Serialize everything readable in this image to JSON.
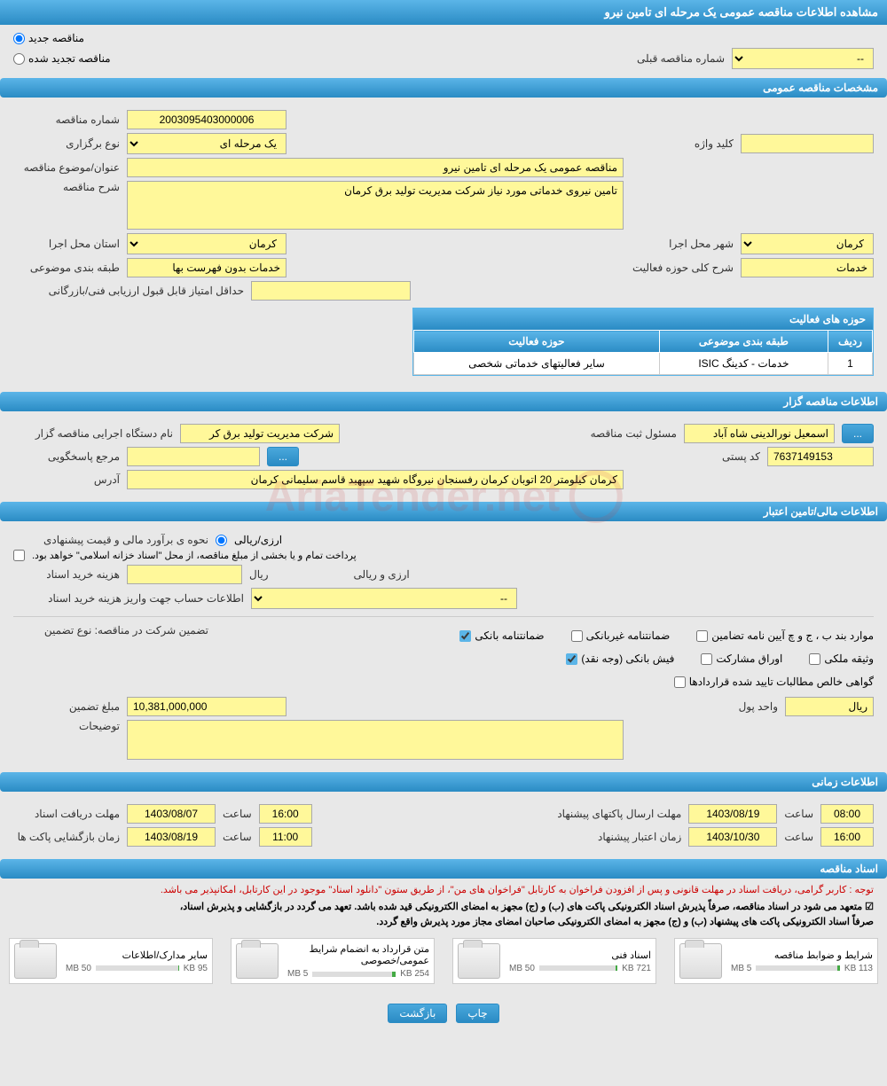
{
  "page_title": "مشاهده اطلاعات مناقصه عمومی یک مرحله ای تامین نیرو",
  "radio": {
    "new": "مناقصه جدید",
    "renewed": "مناقصه تجدید شده"
  },
  "prev_tender": {
    "label": "شماره مناقصه قبلی",
    "value": "--"
  },
  "sections": {
    "general": "مشخصات مناقصه عمومی",
    "holder": "اطلاعات مناقصه گزار",
    "financial": "اطلاعات مالی/تامین اعتبار",
    "timing": "اطلاعات زمانی",
    "documents": "اسناد مناقصه"
  },
  "general": {
    "tender_no_label": "شماره مناقصه",
    "tender_no": "2003095403000006",
    "type_label": "نوع برگزاری",
    "type": "یک مرحله ای",
    "keyword_label": "کلید واژه",
    "keyword": "",
    "subject_label": "عنوان/موضوع مناقصه",
    "subject": "مناقصه عمومی یک مرحله ای تامین نیرو",
    "desc_label": "شرح مناقصه",
    "desc": "تامین نیروی خدماتی مورد نیاز شرکت مدیریت تولید برق کرمان",
    "province_label": "استان محل اجرا",
    "province": "کرمان",
    "city_label": "شهر محل اجرا",
    "city": "کرمان",
    "class_label": "طبقه بندی موضوعی",
    "class": "خدمات بدون فهرست بها",
    "activity_scope_label": "شرح کلی حوزه فعالیت",
    "activity_scope": "خدمات",
    "min_score_label": "حداقل امتیاز قابل قبول ارزیابی فنی/بازرگانی",
    "min_score": ""
  },
  "activity_table": {
    "title": "حوزه های فعالیت",
    "cols": {
      "row": "ردیف",
      "class": "طبقه بندی موضوعی",
      "scope": "حوزه فعالیت"
    },
    "rows": [
      {
        "idx": "1",
        "class": "خدمات - کدینگ ISIC",
        "scope": "سایر فعالیتهای خدماتی شخصی"
      }
    ]
  },
  "holder": {
    "org_label": "نام دستگاه اجرایی مناقصه گزار",
    "org": "شرکت مدیریت تولید برق کر",
    "reg_person_label": "مسئول ثبت مناقصه",
    "reg_person": "اسمعیل نورالدینی شاه آباد",
    "more_btn": "...",
    "ref_label": "مرجع پاسخگویی",
    "ref": "",
    "postal_label": "کد پستی",
    "postal": "7637149153",
    "address_label": "آدرس",
    "address": "کرمان کیلومتر 20 اتوبان کرمان رفسنجان نیروگاه شهید سپهبد قاسم سلیمانی کرمان"
  },
  "financial": {
    "estimate_label": "نحوه ی برآورد مالی و قیمت پیشنهادی",
    "estimate_opt": "ارزی/ریالی",
    "treasury_note": "پرداخت تمام و یا بخشی از مبلغ مناقصه، از محل \"اسناد خزانه اسلامی\" خواهد بود.",
    "purchase_cost_label": "هزینه خرید اسناد",
    "purchase_cost": "",
    "currency_rial": "ریال",
    "currency_fx": "ارزی و ریالی",
    "account_label": "اطلاعات حساب جهت واریز هزینه خرید اسناد",
    "account": "--",
    "guarantee_types_label": "تضمین شرکت در مناقصه:   نوع تضمین",
    "guarantees": {
      "bank_guarantee": "ضمانتنامه بانکی",
      "nonbank_guarantee": "ضمانتنامه غیربانکی",
      "items_b": "موارد بند ب ، ج و چ آیین نامه تضامین",
      "bank_receipt": "فیش بانکی (وجه نقد)",
      "participation_bonds": "اوراق مشارکت",
      "property_pledge": "وثیقه ملکی",
      "net_claims": "گواهی خالص مطالبات تایید شده قراردادها"
    },
    "amount_label": "مبلغ تضمین",
    "amount": "10,381,000,000",
    "unit_label": "واحد پول",
    "unit": "ریال",
    "notes_label": "توضیحات",
    "notes": ""
  },
  "timing": {
    "doc_deadline_label": "مهلت دریافت اسناد",
    "doc_deadline_date": "1403/08/07",
    "doc_deadline_hour": "16:00",
    "bid_deadline_label": "مهلت ارسال پاکتهای پیشنهاد",
    "bid_deadline_date": "1403/08/19",
    "bid_deadline_hour": "08:00",
    "opening_label": "زمان بازگشایی پاکت ها",
    "opening_date": "1403/08/19",
    "opening_hour": "11:00",
    "validity_label": "زمان اعتبار پیشنهاد",
    "validity_date": "1403/10/30",
    "validity_hour": "16:00",
    "hour_label": "ساعت"
  },
  "documents_notes": {
    "line1": "توجه : کاربر گرامی، دریافت اسناد در مهلت قانونی و پس از افزودن فراخوان به کارتابل \"فراخوان های من\"، از طریق ستون \"دانلود اسناد\" موجود در این کارتابل، امکانپذیر می باشد.",
    "line2": "☑ متعهد می شود در اسناد مناقصه، صرفاً پذیرش اسناد الکترونیکی پاکت های (ب) و (ج) مجهز به امضای الکترونیکی قید شده باشد. تعهد می گردد در بازگشایی و پذیرش اسناد،",
    "line3": "صرفاً اسناد الکترونیکی پاکت های پیشنهاد (ب) و (ج) مجهز به امضای الکترونیکی صاحبان امضای مجاز مورد پذیرش واقع گردد."
  },
  "folders": [
    {
      "title": "شرایط و ضوابط مناقصه",
      "used": "113 KB",
      "total": "5 MB",
      "pct": 3
    },
    {
      "title": "اسناد فنی",
      "used": "721 KB",
      "total": "50 MB",
      "pct": 2
    },
    {
      "title": "متن قرارداد به انضمام شرایط عمومی/خصوصی",
      "used": "254 KB",
      "total": "5 MB",
      "pct": 5
    },
    {
      "title": "سایر مدارک/اطلاعات",
      "used": "95 KB",
      "total": "50 MB",
      "pct": 1
    }
  ],
  "footer": {
    "print": "چاپ",
    "back": "بازگشت"
  },
  "watermark": "AriaTender.net"
}
